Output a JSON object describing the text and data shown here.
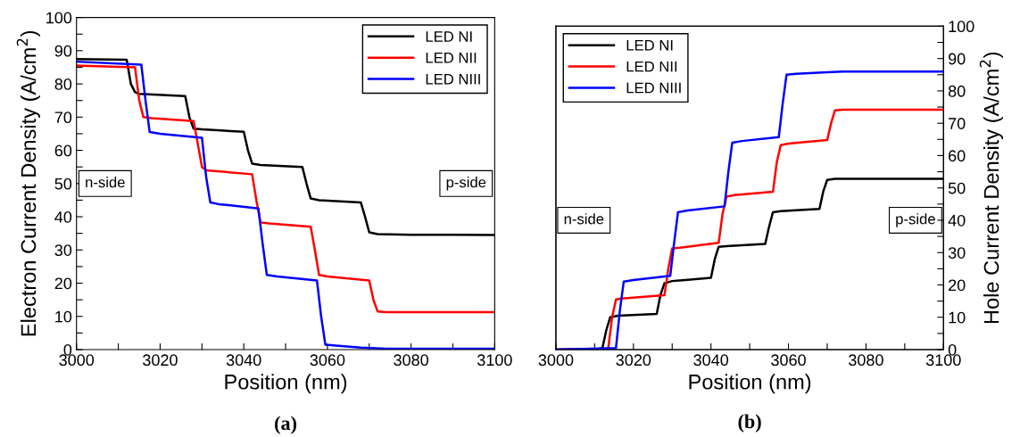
{
  "chart_data": [
    {
      "type": "line",
      "title": "(a)",
      "xlabel": "Position (nm)",
      "ylabel": "Electron Current Density (A/cm$^{2}$)",
      "legend": "top right",
      "grid": false,
      "marker": "none",
      "line_style": "solid",
      "xlim": [
        3000,
        3100
      ],
      "xticks": [
        3000,
        {
          "value": 3010,
          "label": null
        },
        3020,
        {
          "value": 3030,
          "label": null
        },
        3040,
        {
          "value": 3050,
          "label": null
        },
        3060,
        {
          "value": 3070,
          "label": null
        },
        3080,
        {
          "value": 3090,
          "label": null
        },
        3100
      ],
      "ylim": [
        0,
        100
      ],
      "yticks": [
        0,
        {
          "value": 5,
          "label": null
        },
        10,
        {
          "value": 15,
          "label": null
        },
        20,
        {
          "value": 25,
          "label": null
        },
        30,
        {
          "value": 35,
          "label": null
        },
        40,
        {
          "value": 45,
          "label": null
        },
        50,
        {
          "value": 55,
          "label": null
        },
        60,
        {
          "value": 65,
          "label": null
        },
        70,
        {
          "value": 75,
          "label": null
        },
        80,
        {
          "value": 85,
          "label": null
        },
        90,
        {
          "value": 95,
          "label": null
        },
        100
      ],
      "annotations": [
        "n-side",
        "p-side"
      ],
      "series": [
        {
          "name": "LED NI",
          "color": "#000000",
          "x": [
            3000,
            3012,
            3013,
            3014,
            3015,
            3026,
            3027,
            3028,
            3030,
            3040,
            3041,
            3042,
            3044,
            3054,
            3055,
            3056,
            3058,
            3068,
            3069,
            3070,
            3072,
            3080,
            3100
          ],
          "values": [
            87.5,
            87.3,
            80,
            77.5,
            77,
            76.3,
            70,
            66.5,
            66.3,
            65.6,
            60,
            56,
            55.6,
            55,
            50,
            45.5,
            45,
            44.3,
            40,
            35.3,
            34.8,
            34.6,
            34.5
          ]
        },
        {
          "name": "LED NII",
          "color": "#ff0000",
          "x": [
            3000,
            3014,
            3015,
            3016,
            3018,
            3028,
            3029,
            3030,
            3031,
            3042,
            3043,
            3044,
            3046,
            3056,
            3057,
            3058,
            3060,
            3070,
            3071,
            3072,
            3074,
            3100
          ],
          "values": [
            85.5,
            85,
            75,
            70,
            69.7,
            68.8,
            62,
            55,
            54,
            52.8,
            45,
            38.3,
            38,
            37,
            30,
            22.5,
            22,
            20.8,
            15,
            11.5,
            11.3,
            11.3
          ]
        },
        {
          "name": "LED NIII",
          "color": "#0000ff",
          "x": [
            3000,
            3015.5,
            3016.5,
            3017.5,
            3020,
            3030,
            3031,
            3032,
            3034,
            3043.5,
            3044.5,
            3045.5,
            3048,
            3057.5,
            3058.5,
            3059.5,
            3062,
            3068,
            3074,
            3100
          ],
          "values": [
            86.7,
            85.8,
            75,
            65.5,
            65,
            63.8,
            52,
            44.3,
            43.8,
            42.5,
            32,
            22.5,
            22,
            20.8,
            10,
            1.5,
            1.2,
            0.6,
            0.3,
            0.3
          ]
        }
      ]
    },
    {
      "type": "line",
      "title": "(b)",
      "xlabel": "Position (nm)",
      "y2label": "Hole Current Density (A/cm$^{2}$)",
      "legend": "top left",
      "grid": false,
      "marker": "none",
      "line_style": "solid",
      "xlim": [
        3000,
        3100
      ],
      "xticks": [
        3000,
        {
          "value": 3010,
          "label": null
        },
        3020,
        {
          "value": 3030,
          "label": null
        },
        3040,
        {
          "value": 3050,
          "label": null
        },
        3060,
        {
          "value": 3070,
          "label": null
        },
        3080,
        {
          "value": 3090,
          "label": null
        },
        3100
      ],
      "y2lim": [
        0,
        100
      ],
      "y2ticks": [
        0,
        {
          "value": 5,
          "label": null
        },
        10,
        {
          "value": 15,
          "label": null
        },
        20,
        {
          "value": 25,
          "label": null
        },
        30,
        {
          "value": 35,
          "label": null
        },
        40,
        {
          "value": 45,
          "label": null
        },
        50,
        {
          "value": 55,
          "label": null
        },
        60,
        {
          "value": 65,
          "label": null
        },
        70,
        {
          "value": 75,
          "label": null
        },
        80,
        {
          "value": 85,
          "label": null
        },
        90,
        {
          "value": 95,
          "label": null
        },
        100
      ],
      "annotations": [
        "n-side",
        "p-side"
      ],
      "series": [
        {
          "name": "LED NI",
          "color": "#000000",
          "axis": "y2",
          "x": [
            3000,
            3011,
            3012,
            3013,
            3014,
            3016,
            3026,
            3027,
            3028,
            3030,
            3040,
            3041,
            3042,
            3044,
            3054,
            3055,
            3056,
            3058,
            3068,
            3069,
            3070,
            3072,
            3100
          ],
          "values": [
            0,
            0.2,
            0.5,
            6,
            10,
            10.5,
            11,
            17,
            20.5,
            21.2,
            22.2,
            28,
            31.8,
            32,
            32.7,
            38,
            42.5,
            42.8,
            43.5,
            49,
            52.5,
            52.8,
            52.8
          ]
        },
        {
          "name": "LED NII",
          "color": "#ff0000",
          "axis": "y2",
          "x": [
            3000,
            3013.5,
            3014.5,
            3015.5,
            3017,
            3028,
            3029,
            3030,
            3032,
            3042,
            3043,
            3044,
            3046,
            3056,
            3057,
            3058,
            3060,
            3070,
            3071,
            3072,
            3074,
            3100
          ],
          "values": [
            0,
            0.3,
            10,
            15.5,
            15.8,
            16.8,
            25,
            31.3,
            31.5,
            33,
            42,
            47.3,
            47.8,
            48.8,
            58,
            63.2,
            63.7,
            64.8,
            70,
            74,
            74.2,
            74.2
          ]
        },
        {
          "name": "LED NIII",
          "color": "#0000ff",
          "axis": "y2",
          "x": [
            3000,
            3015.5,
            3016.5,
            3017.5,
            3020,
            3029.5,
            3030.5,
            3031.5,
            3034,
            3043.5,
            3044.5,
            3045.5,
            3048,
            3057.5,
            3058.5,
            3059.5,
            3062,
            3070,
            3074,
            3100
          ],
          "values": [
            0,
            0.5,
            12,
            21,
            21.5,
            22.8,
            33,
            42.5,
            43,
            44.3,
            55,
            64,
            64.5,
            65.7,
            76,
            85,
            85.3,
            85.8,
            86,
            86
          ]
        }
      ]
    }
  ]
}
